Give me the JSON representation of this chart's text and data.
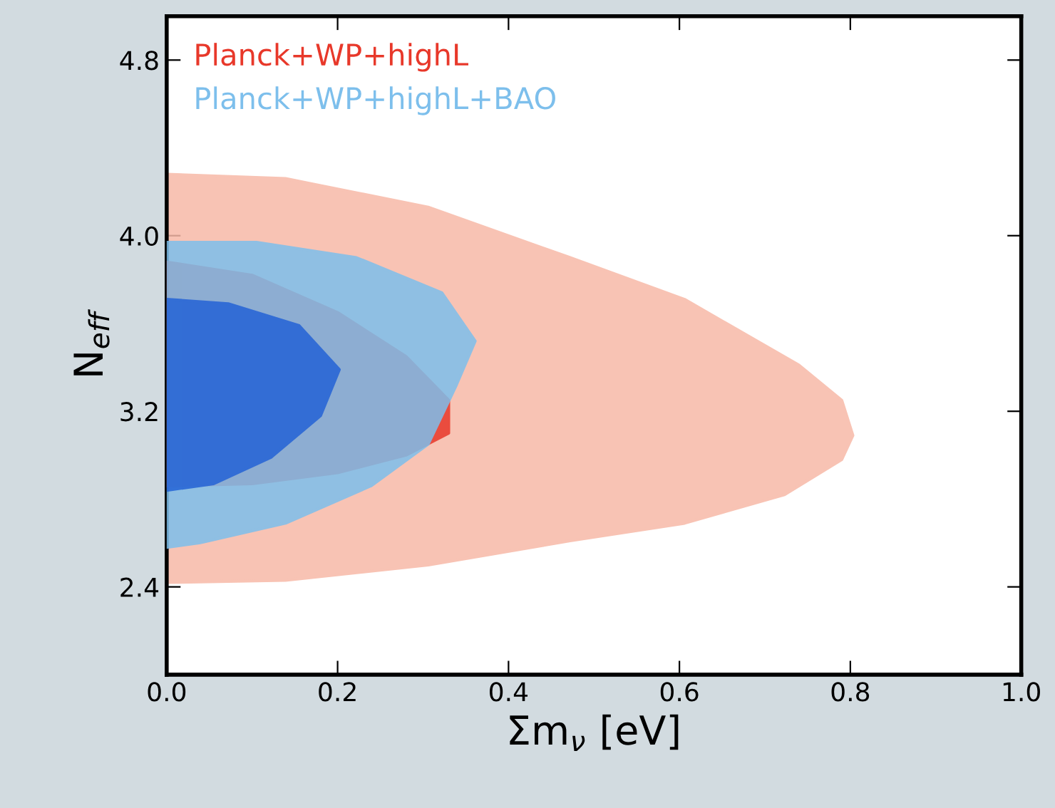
{
  "chart_data": {
    "type": "area",
    "xlabel": "Σm$_{ν}$ [eV]",
    "ylabel": "N$_{eff}$",
    "xlim": [
      0,
      1.0
    ],
    "ylim": [
      2.0,
      5.0
    ],
    "xticks": [
      {
        "value": 0,
        "label": "0.0"
      },
      {
        "value": 0.2,
        "label": "0.2"
      },
      {
        "value": 0.4,
        "label": "0.4"
      },
      {
        "value": 0.6,
        "label": "0.6"
      },
      {
        "value": 0.8,
        "label": "0.8"
      },
      {
        "value": 1.0,
        "label": "1.0"
      }
    ],
    "yticks": [
      2.4,
      3.2,
      {
        "value": 4.0,
        "label": "4.0"
      },
      4.8
    ],
    "grid": false,
    "legend": "top left",
    "series": [
      {
        "color": "#f7b9a7",
        "x": [
          0,
          0.139,
          0.306,
          0.472,
          0.606,
          0.74,
          0.79,
          0.803,
          0.79,
          0.723,
          0.606,
          0.472,
          0.306,
          0.139,
          0
        ],
        "values": [
          4.28,
          4.26,
          4.13,
          3.9,
          3.71,
          3.41,
          3.25,
          3.09,
          2.98,
          2.82,
          2.69,
          2.61,
          2.5,
          2.43,
          2.42
        ]
      },
      {
        "name": "Planck+WP+highL",
        "color": "#e8382a",
        "x": [
          0,
          0.1,
          0.2,
          0.28,
          0.33,
          0.33,
          0.28,
          0.2,
          0.1,
          0
        ],
        "values": [
          3.88,
          3.82,
          3.65,
          3.45,
          3.25,
          3.1,
          3.0,
          2.92,
          2.87,
          2.86
        ]
      },
      {
        "name": "Planck+WP+highL+BAO",
        "color": "#7dbfec",
        "x": [
          0,
          0.105,
          0.222,
          0.322,
          0.361,
          0.339,
          0.306,
          0.239,
          0.139,
          0.038,
          0
        ],
        "values": [
          3.97,
          3.97,
          3.9,
          3.74,
          3.52,
          3.32,
          3.05,
          2.86,
          2.69,
          2.6,
          2.58
        ]
      },
      {
        "color": "#2463d6",
        "x": [
          0,
          0.072,
          0.155,
          0.202,
          0.18,
          0.122,
          0.055,
          0
        ],
        "values": [
          3.71,
          3.69,
          3.59,
          3.39,
          3.18,
          2.99,
          2.87,
          2.84
        ]
      }
    ]
  }
}
